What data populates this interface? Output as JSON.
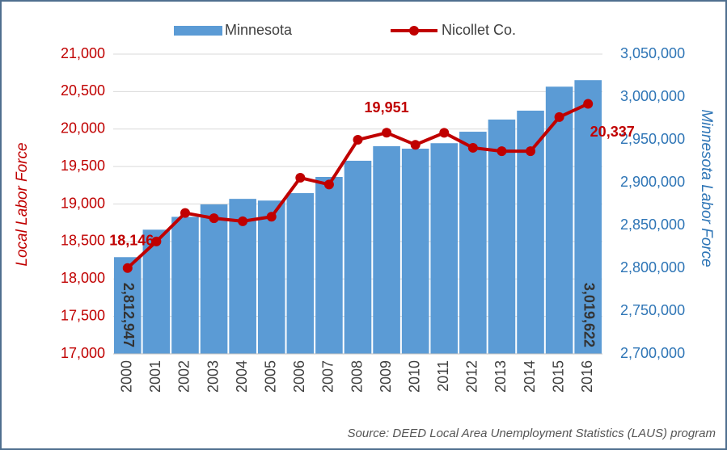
{
  "chart_data": {
    "type": "bar-line",
    "categories": [
      "2000",
      "2001",
      "2002",
      "2003",
      "2004",
      "2005",
      "2006",
      "2007",
      "2008",
      "2009",
      "2010",
      "2011",
      "2012",
      "2013",
      "2014",
      "2015",
      "2016"
    ],
    "series": [
      {
        "name": "Minnesota",
        "color": "#5b9bd5",
        "axis": "y2",
        "type": "bar",
        "values": [
          2812947,
          2845000,
          2860000,
          2874500,
          2881000,
          2879000,
          2887700,
          2906600,
          2925500,
          2942500,
          2939600,
          2946000,
          2959400,
          2973600,
          2984000,
          3012000,
          3019622
        ],
        "value_labels": [
          "2,812,947",
          null,
          null,
          null,
          null,
          null,
          null,
          null,
          null,
          null,
          null,
          null,
          null,
          null,
          null,
          null,
          "3,019,622"
        ]
      },
      {
        "name": "Nicollet Co.",
        "color": "#c00000",
        "type": "line",
        "values": [
          18146,
          18500,
          18880,
          18810,
          18770,
          18830,
          19350,
          19260,
          19857,
          19951,
          19790,
          19950,
          19750,
          19705,
          19705,
          20160,
          20337
        ],
        "value_labels": [
          "18,146",
          null,
          null,
          null,
          null,
          null,
          null,
          null,
          null,
          "19,951",
          null,
          null,
          null,
          null,
          null,
          null,
          "20,337"
        ]
      }
    ],
    "ylabel": "Local Labor Force",
    "y2label": "Minnesota Labor Force",
    "ylim": [
      17000,
      21000
    ],
    "yticks": [
      {
        "value": 17000,
        "label": "17,000"
      },
      {
        "value": 17500,
        "label": "17,500"
      },
      {
        "value": 18000,
        "label": "18,000"
      },
      {
        "value": 18500,
        "label": "18,500"
      },
      {
        "value": 19000,
        "label": "19,000"
      },
      {
        "value": 19500,
        "label": "19,500"
      },
      {
        "value": 20000,
        "label": "20,000"
      },
      {
        "value": 20500,
        "label": "20,500"
      },
      {
        "value": 21000,
        "label": "21,000"
      }
    ],
    "y2lim": [
      2700000,
      3050000
    ],
    "y2ticks": [
      {
        "value": 2700000,
        "label": "2,700,000"
      },
      {
        "value": 2750000,
        "label": "2,750,000"
      },
      {
        "value": 2800000,
        "label": "2,800,000"
      },
      {
        "value": 2850000,
        "label": "2,850,000"
      },
      {
        "value": 2900000,
        "label": "2,900,000"
      },
      {
        "value": 2950000,
        "label": "2,950,000"
      },
      {
        "value": 3000000,
        "label": "3,000,000"
      },
      {
        "value": 3050000,
        "label": "3,050,000"
      }
    ],
    "grid": true,
    "legend": "top",
    "source": "Source: DEED Local Area Unemployment Statistics (LAUS) program"
  }
}
